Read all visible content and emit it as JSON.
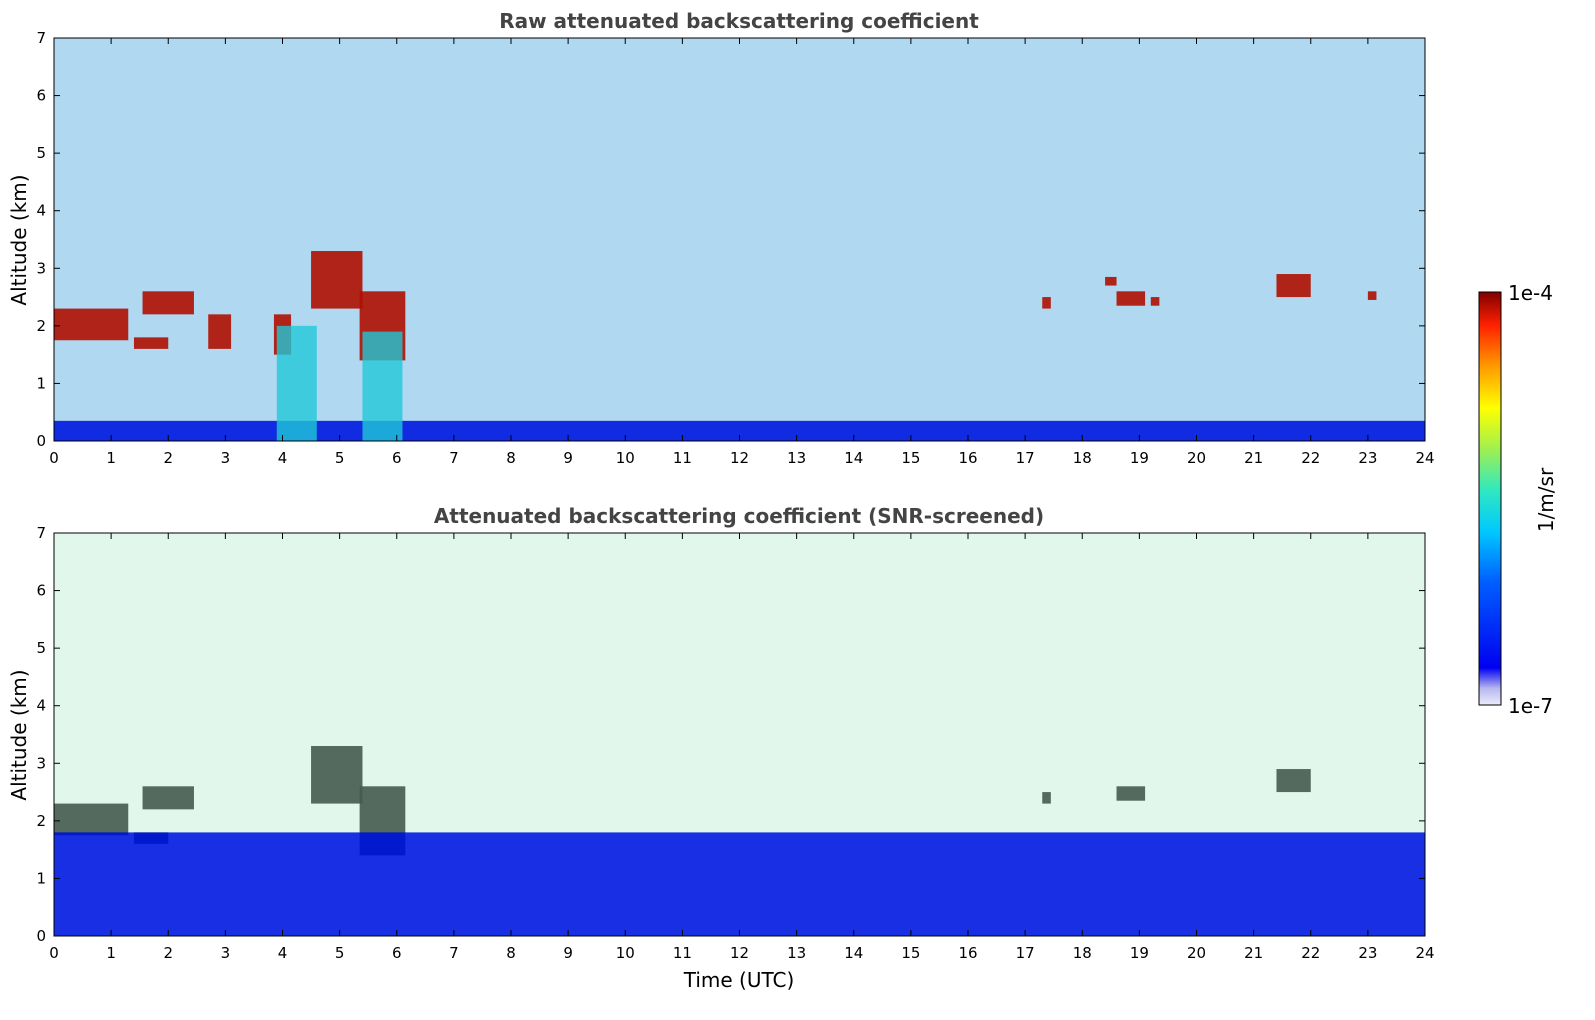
{
  "chart_data": [
    {
      "type": "heatmap",
      "title": "Raw attenuated backscattering coefficient",
      "xlabel": "",
      "ylabel": "Altitude (km)",
      "xlim": [
        0,
        24
      ],
      "ylim": [
        0,
        7
      ],
      "xticks": [
        "0",
        "1",
        "2",
        "3",
        "4",
        "5",
        "6",
        "7",
        "8",
        "9",
        "10",
        "11",
        "12",
        "13",
        "14",
        "15",
        "16",
        "17",
        "18",
        "19",
        "20",
        "21",
        "22",
        "23",
        "24"
      ],
      "yticks": [
        "0",
        "1",
        "2",
        "3",
        "4",
        "5",
        "6",
        "7"
      ],
      "grid": false,
      "color_scale": "log",
      "features": [
        {
          "kind": "cloud",
          "x": [
            0.0,
            1.3
          ],
          "y": [
            1.75,
            2.3
          ]
        },
        {
          "kind": "cloud",
          "x": [
            1.55,
            2.45
          ],
          "y": [
            2.2,
            2.6
          ]
        },
        {
          "kind": "cloud",
          "x": [
            1.4,
            2.0
          ],
          "y": [
            1.6,
            1.8
          ]
        },
        {
          "kind": "cloud",
          "x": [
            2.7,
            3.1
          ],
          "y": [
            1.6,
            2.2
          ]
        },
        {
          "kind": "cloud",
          "x": [
            3.85,
            4.15
          ],
          "y": [
            1.5,
            2.2
          ]
        },
        {
          "kind": "cloud",
          "x": [
            4.5,
            5.4
          ],
          "y": [
            2.3,
            3.3
          ]
        },
        {
          "kind": "cloud",
          "x": [
            5.35,
            6.15
          ],
          "y": [
            1.4,
            2.6
          ]
        },
        {
          "kind": "cloud",
          "x": [
            17.3,
            17.45
          ],
          "y": [
            2.3,
            2.5
          ]
        },
        {
          "kind": "cloud",
          "x": [
            18.4,
            18.6
          ],
          "y": [
            2.7,
            2.85
          ]
        },
        {
          "kind": "cloud",
          "x": [
            18.6,
            19.1
          ],
          "y": [
            2.35,
            2.6
          ]
        },
        {
          "kind": "cloud",
          "x": [
            19.2,
            19.35
          ],
          "y": [
            2.35,
            2.5
          ]
        },
        {
          "kind": "cloud",
          "x": [
            21.4,
            22.0
          ],
          "y": [
            2.5,
            2.9
          ]
        },
        {
          "kind": "cloud",
          "x": [
            23.0,
            23.15
          ],
          "y": [
            2.45,
            2.6
          ]
        },
        {
          "kind": "boundary_layer",
          "x": [
            0,
            24
          ],
          "y": [
            0,
            0.35
          ]
        },
        {
          "kind": "aerosol_columns",
          "x": [
            3.9,
            4.6
          ],
          "y": [
            0,
            2.0
          ]
        },
        {
          "kind": "aerosol_columns",
          "x": [
            5.4,
            6.1
          ],
          "y": [
            0,
            1.9
          ]
        }
      ]
    },
    {
      "type": "heatmap",
      "title": "Attenuated backscattering coefficient (SNR-screened)",
      "xlabel": "Time (UTC)",
      "ylabel": "Altitude (km)",
      "xlim": [
        0,
        24
      ],
      "ylim": [
        0,
        7
      ],
      "xticks": [
        "0",
        "1",
        "2",
        "3",
        "4",
        "5",
        "6",
        "7",
        "8",
        "9",
        "10",
        "11",
        "12",
        "13",
        "14",
        "15",
        "16",
        "17",
        "18",
        "19",
        "20",
        "21",
        "22",
        "23",
        "24"
      ],
      "yticks": [
        "0",
        "1",
        "2",
        "3",
        "4",
        "5",
        "6",
        "7"
      ],
      "grid": false,
      "color_scale": "log",
      "features": [
        {
          "kind": "cloud",
          "x": [
            0.0,
            1.3
          ],
          "y": [
            1.75,
            2.3
          ]
        },
        {
          "kind": "cloud",
          "x": [
            1.55,
            2.45
          ],
          "y": [
            2.2,
            2.6
          ]
        },
        {
          "kind": "cloud",
          "x": [
            1.4,
            2.0
          ],
          "y": [
            1.6,
            1.8
          ]
        },
        {
          "kind": "cloud",
          "x": [
            4.5,
            5.4
          ],
          "y": [
            2.3,
            3.3
          ]
        },
        {
          "kind": "cloud",
          "x": [
            5.35,
            6.15
          ],
          "y": [
            1.4,
            2.6
          ]
        },
        {
          "kind": "cloud",
          "x": [
            17.3,
            17.45
          ],
          "y": [
            2.3,
            2.5
          ]
        },
        {
          "kind": "cloud",
          "x": [
            18.6,
            19.1
          ],
          "y": [
            2.35,
            2.6
          ]
        },
        {
          "kind": "cloud",
          "x": [
            21.4,
            22.0
          ],
          "y": [
            2.5,
            2.9
          ]
        },
        {
          "kind": "boundary_layer",
          "x": [
            0,
            24
          ],
          "y": [
            0,
            1.8
          ]
        },
        {
          "kind": "screened_noise",
          "x": [
            0,
            24
          ],
          "y": [
            1.8,
            7
          ]
        }
      ]
    }
  ],
  "colorbar": {
    "label": "1/m/sr",
    "max_label": "1e-4",
    "min_label": "1e-7",
    "range": [
      1e-07,
      0.0001
    ],
    "scale": "log",
    "colormap": [
      "#e8e8f8",
      "#0000e0",
      "#0050ff",
      "#00c0ff",
      "#30e8c0",
      "#90f060",
      "#ffff00",
      "#ff9000",
      "#ff2000",
      "#800000"
    ]
  }
}
